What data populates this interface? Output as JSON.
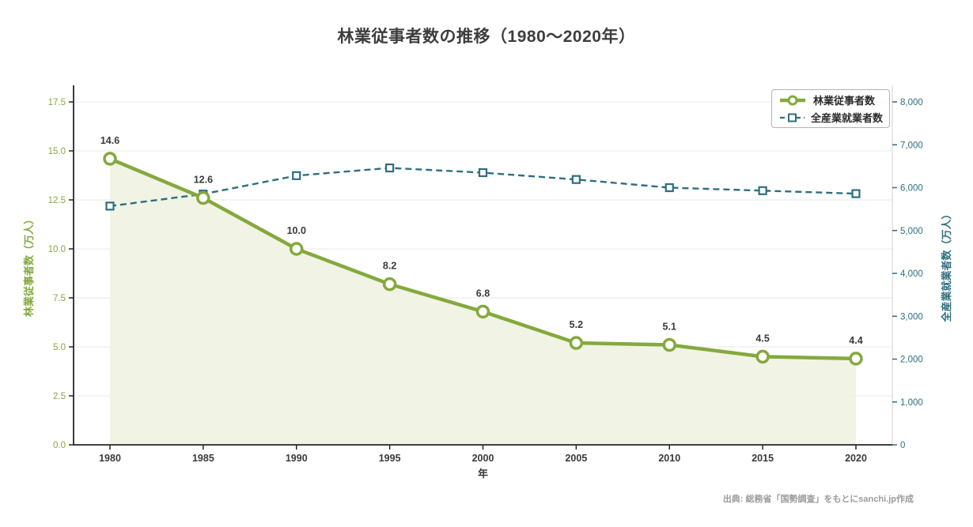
{
  "header": {
    "title": "林業従事者数の推移（1980〜2020年）"
  },
  "chart_data": {
    "type": "line",
    "title": "林業従事者数の推移（1980〜2020年）",
    "xlabel": "年",
    "categories": [
      "1980",
      "1985",
      "1990",
      "1995",
      "2000",
      "2005",
      "2010",
      "2015",
      "2020"
    ],
    "series": [
      {
        "name": "林業従事者数",
        "axis": "left",
        "style": "solid-line-with-area",
        "marker": "circle",
        "color": "#84A93E",
        "area_color": "#EFF2E1",
        "values": [
          14.6,
          12.6,
          10.0,
          8.2,
          6.8,
          5.2,
          5.1,
          4.5,
          4.4
        ],
        "value_labels": [
          "14.6",
          "12.6",
          "10.0",
          "8.2",
          "6.8",
          "5.2",
          "5.1",
          "4.5",
          "4.4"
        ]
      },
      {
        "name": "全産業就業者数",
        "axis": "right",
        "style": "dashed-line",
        "marker": "square",
        "color": "#2E6F7F",
        "values": [
          5570,
          5850,
          6280,
          6460,
          6350,
          6190,
          6000,
          5930,
          5860
        ],
        "value_labels": []
      }
    ],
    "left_axis": {
      "label": "林業従事者数（万人）",
      "min": 0,
      "max": 17.5,
      "tick_step": 2.5,
      "tick_labels": [
        "0.0",
        "2.5",
        "5.0",
        "7.5",
        "10.0",
        "12.5",
        "15.0",
        "17.5"
      ],
      "color": "#84A93E"
    },
    "right_axis": {
      "label": "全産業就業者数（万人）",
      "min": 0,
      "max": 8000,
      "tick_step": 1000,
      "tick_labels": [
        "0",
        "1,000",
        "2,000",
        "3,000",
        "4,000",
        "5,000",
        "6,000",
        "7,000",
        "8,000"
      ],
      "color": "#2E6F7F"
    },
    "legend": {
      "position": "top-right",
      "entries": [
        "林業従事者数",
        "全産業就業者数"
      ]
    },
    "grid": true,
    "gridline_color": "#e8e8e8",
    "value_label_color": "#3a3a3a",
    "tick_text_color": "#3a3a3a"
  },
  "footer": {
    "source": "出典: 総務省「国勢調査」をもとにsanchi.jp作成"
  }
}
